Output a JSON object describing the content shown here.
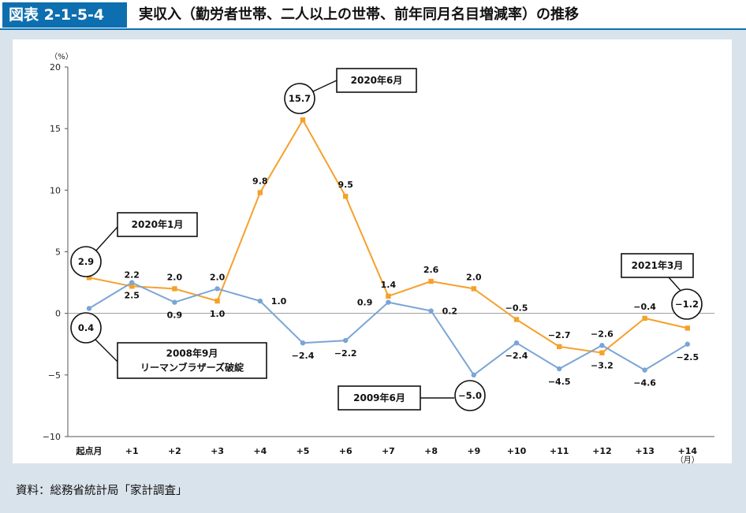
{
  "header": {
    "figure_label": "図表 2-1-5-4",
    "title": "実収入（勤労者世帯、二人以上の世帯、前年同月名目増減率）の推移"
  },
  "source": "資料：総務省統計局「家計調査」",
  "colors": {
    "accent": "#0d6faf",
    "orange_series": "#f5a12c",
    "blue_series": "#7aa5d6",
    "background": "#d9e3ec"
  },
  "chart_data": {
    "type": "line",
    "title": "",
    "ylabel": "（%）",
    "xunit": "（月）",
    "ylim": [
      -10,
      20
    ],
    "yticks": [
      20,
      15,
      10,
      5,
      0,
      -5,
      -10
    ],
    "yticklabels": [
      "20",
      "15",
      "10",
      "5",
      "0",
      "−5",
      "−10"
    ],
    "categories": [
      "起点月",
      "+1",
      "+2",
      "+3",
      "+4",
      "+5",
      "+6",
      "+7",
      "+8",
      "+9",
      "+10",
      "+11",
      "+12",
      "+13",
      "+14"
    ],
    "series": [
      {
        "name": "2020年1月起点",
        "color": "#f5a12c",
        "marker": "square",
        "values": [
          2.9,
          2.2,
          2.0,
          1.0,
          9.8,
          15.7,
          9.5,
          1.4,
          2.6,
          2.0,
          -0.5,
          -2.7,
          -3.2,
          -0.4,
          -1.2
        ],
        "labels": [
          "",
          "2.2",
          "2.0",
          "1.0",
          "9.8",
          "",
          "9.5",
          "1.4",
          "2.6",
          "2.0",
          "−0.5",
          "−2.7",
          "−3.2",
          "−0.4",
          ""
        ],
        "label_pos": [
          "",
          "above",
          "above",
          "below",
          "above",
          "",
          "above",
          "above",
          "above",
          "above",
          "above",
          "above",
          "below",
          "above",
          ""
        ]
      },
      {
        "name": "2008年9月起点",
        "color": "#7aa5d6",
        "marker": "circle",
        "values": [
          0.4,
          2.5,
          0.9,
          2.0,
          1.0,
          -2.4,
          -2.2,
          0.9,
          0.2,
          -5.0,
          -2.4,
          -4.5,
          -2.6,
          -4.6,
          -2.5
        ],
        "labels": [
          "",
          "2.5",
          "0.9",
          "2.0",
          "1.0",
          "−2.4",
          "−2.2",
          "0.9",
          "0.2",
          "",
          "−2.4",
          "−4.5",
          "−2.6",
          "−4.6",
          "−2.5"
        ],
        "label_pos": [
          "",
          "below",
          "below",
          "above",
          "right",
          "below",
          "below",
          "left",
          "right",
          "",
          "below",
          "below",
          "above",
          "below",
          "below"
        ]
      }
    ],
    "annotations": [
      {
        "name": "start-2020",
        "box": [
          "2020年1月"
        ],
        "circle": "2.9",
        "series": 0,
        "index": 0
      },
      {
        "name": "start-2008",
        "box": [
          "2008年9月",
          "リーマンブラザーズ破綻"
        ],
        "circle": "0.4",
        "series": 1,
        "index": 0
      },
      {
        "name": "peak-2020",
        "box": [
          "2020年6月"
        ],
        "circle": "15.7",
        "series": 0,
        "index": 5
      },
      {
        "name": "trough-2009",
        "box": [
          "2009年6月"
        ],
        "circle": "−5.0",
        "series": 1,
        "index": 9
      },
      {
        "name": "end-2021",
        "box": [
          "2021年3月"
        ],
        "circle": "−1.2",
        "series": 0,
        "index": 14
      }
    ]
  }
}
